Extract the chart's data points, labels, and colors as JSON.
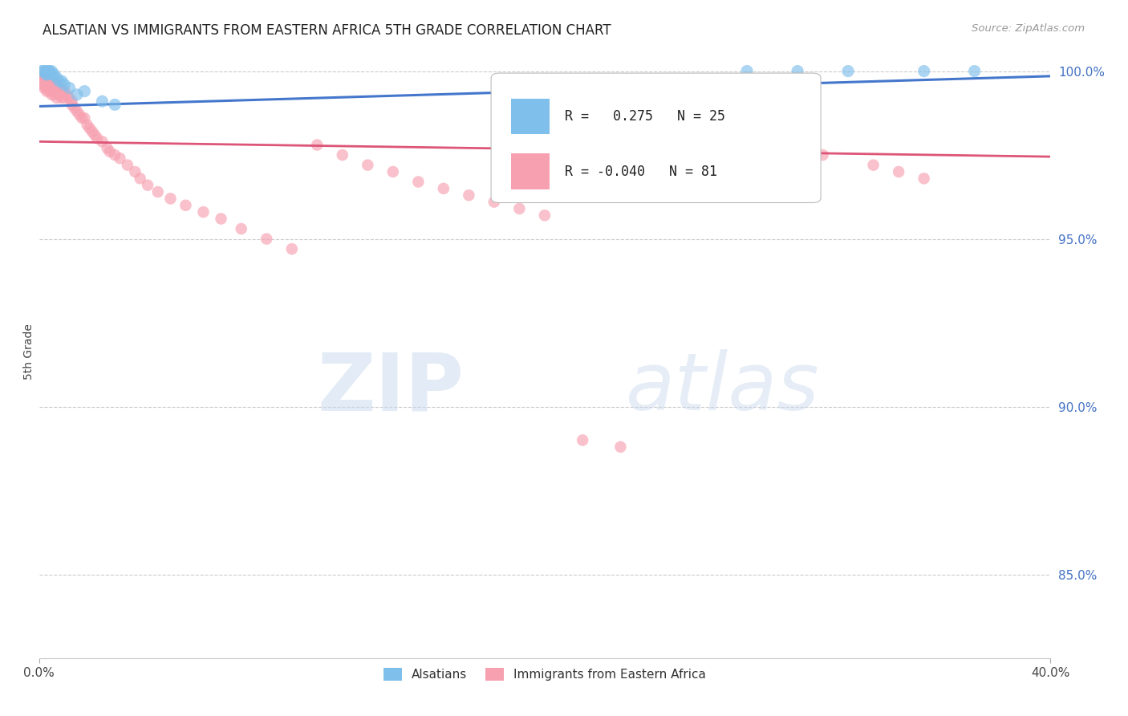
{
  "title": "ALSATIAN VS IMMIGRANTS FROM EASTERN AFRICA 5TH GRADE CORRELATION CHART",
  "source": "Source: ZipAtlas.com",
  "ylabel": "5th Grade",
  "xmin": 0.0,
  "xmax": 0.4,
  "ymin": 0.825,
  "ymax": 1.008,
  "yticks": [
    0.85,
    0.9,
    0.95,
    1.0
  ],
  "ytick_labels": [
    "85.0%",
    "90.0%",
    "95.0%",
    "100.0%"
  ],
  "blue_R": 0.275,
  "blue_N": 25,
  "pink_R": -0.04,
  "pink_N": 81,
  "blue_color": "#7fbfeb",
  "pink_color": "#f7a0b0",
  "blue_line_color": "#4477cc",
  "pink_line_color": "#dd5577",
  "legend_blue_label": "Alsatians",
  "legend_pink_label": "Immigrants from Eastern Africa",
  "watermark_zip": "ZIP",
  "watermark_atlas": "atlas",
  "blue_scatter_x": [
    0.001,
    0.002,
    0.002,
    0.003,
    0.003,
    0.003,
    0.004,
    0.004,
    0.005,
    0.005,
    0.006,
    0.007,
    0.008,
    0.009,
    0.01,
    0.012,
    0.015,
    0.018,
    0.025,
    0.03,
    0.28,
    0.3,
    0.32,
    0.35,
    0.37
  ],
  "blue_scatter_y": [
    1.0,
    1.0,
    1.0,
    1.0,
    0.999,
    0.999,
    1.0,
    1.0,
    1.0,
    0.999,
    0.999,
    0.998,
    0.997,
    0.997,
    0.996,
    0.995,
    0.993,
    0.994,
    0.991,
    0.99,
    1.0,
    1.0,
    1.0,
    1.0,
    1.0
  ],
  "pink_scatter_x": [
    0.001,
    0.001,
    0.001,
    0.002,
    0.002,
    0.002,
    0.002,
    0.003,
    0.003,
    0.003,
    0.003,
    0.004,
    0.004,
    0.004,
    0.004,
    0.005,
    0.005,
    0.005,
    0.005,
    0.006,
    0.006,
    0.006,
    0.007,
    0.007,
    0.007,
    0.008,
    0.008,
    0.009,
    0.009,
    0.01,
    0.01,
    0.011,
    0.012,
    0.013,
    0.013,
    0.014,
    0.015,
    0.016,
    0.017,
    0.018,
    0.019,
    0.02,
    0.021,
    0.022,
    0.023,
    0.025,
    0.027,
    0.028,
    0.03,
    0.032,
    0.035,
    0.038,
    0.04,
    0.043,
    0.047,
    0.052,
    0.058,
    0.065,
    0.072,
    0.08,
    0.09,
    0.1,
    0.11,
    0.12,
    0.13,
    0.14,
    0.15,
    0.16,
    0.17,
    0.18,
    0.19,
    0.2,
    0.215,
    0.23,
    0.25,
    0.27,
    0.29,
    0.31,
    0.33,
    0.34,
    0.35
  ],
  "pink_scatter_y": [
    0.998,
    0.997,
    0.996,
    0.998,
    0.997,
    0.996,
    0.995,
    0.997,
    0.996,
    0.995,
    0.994,
    0.997,
    0.996,
    0.995,
    0.994,
    0.997,
    0.996,
    0.995,
    0.993,
    0.996,
    0.995,
    0.993,
    0.996,
    0.994,
    0.992,
    0.995,
    0.993,
    0.994,
    0.992,
    0.994,
    0.992,
    0.993,
    0.992,
    0.991,
    0.99,
    0.989,
    0.988,
    0.987,
    0.986,
    0.986,
    0.984,
    0.983,
    0.982,
    0.981,
    0.98,
    0.979,
    0.977,
    0.976,
    0.975,
    0.974,
    0.972,
    0.97,
    0.968,
    0.966,
    0.964,
    0.962,
    0.96,
    0.958,
    0.956,
    0.953,
    0.95,
    0.947,
    0.978,
    0.975,
    0.972,
    0.97,
    0.967,
    0.965,
    0.963,
    0.961,
    0.959,
    0.957,
    0.89,
    0.888,
    0.983,
    0.98,
    0.977,
    0.975,
    0.972,
    0.97,
    0.968
  ]
}
